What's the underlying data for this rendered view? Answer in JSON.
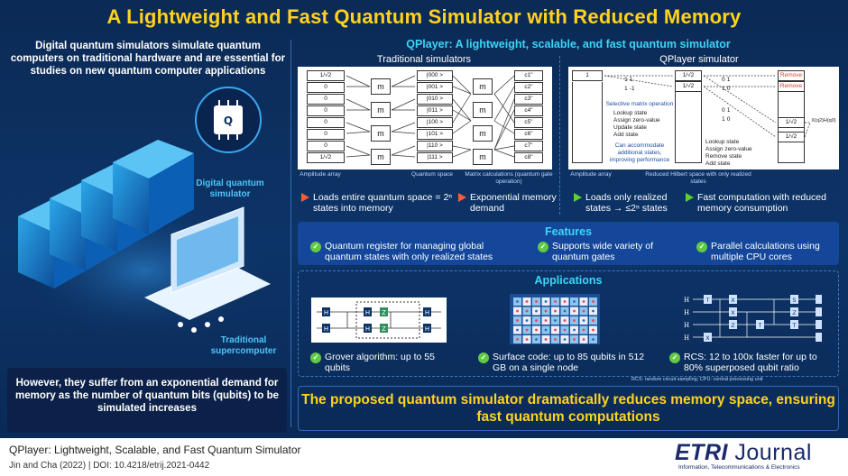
{
  "title": "A Lightweight and Fast Quantum Simulator with Reduced Memory",
  "left": {
    "intro": "Digital quantum simulators simulate quantum computers on traditional hardware and are essential for studies on new quantum computer applications",
    "digital_label": "Digital quantum simulator",
    "super_label": "Traditional supercomputer",
    "problem": "However, they suffer from an exponential demand for memory as the number of quantum bits (qubits) to be simulated increases"
  },
  "qplayer": {
    "heading": "QPlayer: A lightweight, scalable, and fast quantum simulator",
    "traditional": {
      "heading": "Traditional simulators",
      "amplitudes": [
        "1/√2",
        "0",
        "0",
        "0",
        "0",
        "0",
        "0",
        "1/√2"
      ],
      "states": [
        "|000 >",
        "|001 >",
        "|010 >",
        "|011 >",
        "|100 >",
        "|101 >",
        "|110 >",
        "|111 >"
      ],
      "coeffs": [
        "c1''",
        "c2''",
        "c3''",
        "c4''",
        "c5''",
        "c6''",
        "c7''",
        "c8''"
      ],
      "matrix_symbol": "m",
      "cap_amplitude": "Amplitude array",
      "cap_space": "Quantum space",
      "cap_matrix": "Matrix calculations (quantum gate operation)",
      "point1": "Loads entire quantum space = 2ⁿ states into memory",
      "point2": "Exponential memory demand"
    },
    "qp": {
      "heading": "QPlayer simulator",
      "first_cell": "1",
      "mid_cells": [
        "1/√2",
        "1/√2"
      ],
      "remove_cells": [
        "Remove",
        "Remove"
      ],
      "final_cells": [
        "1/√2",
        "1/√2"
      ],
      "ops1": [
        "Selective matrix operation",
        "Lookup state",
        "Assign zero-value",
        "Update state",
        "Add state"
      ],
      "ops2": [
        "Lookup state",
        "Assign zero-value",
        "Remove state",
        "Add state"
      ],
      "accommodate": "Can accommodate additional states, improving performance",
      "x_label": "X(q2)H(q0)",
      "cap_amplitude": "Amplitude array",
      "cap_reduced": "Reduced Hilbert space with only realized states",
      "point1": "Loads only realized states → ≤2ⁿ states",
      "point2": "Fast computation with reduced memory consumption"
    }
  },
  "features": {
    "title": "Features",
    "items": [
      "Quantum register for managing global quantum states with only realized states",
      "Supports wide variety of quantum gates",
      "Parallel calculations using multiple CPU cores"
    ]
  },
  "applications": {
    "title": "Applications",
    "items": [
      "Grover algorithm: up to 55 qubits",
      "Surface code: up to 85 qubits in 512 GB on a single node",
      "RCS: 12 to 100x faster for up to 80% superposed qubit ratio"
    ],
    "footnote": "RCS: random circuit sampling; CPU: central processing unit",
    "grover_gates": [
      "H",
      "H",
      "H",
      "Z",
      "H",
      "H",
      "Z",
      "H"
    ],
    "rcs_gates": [
      "T",
      "X",
      "S",
      "X",
      "Z",
      "T",
      "X",
      "Z",
      "T"
    ],
    "qubit_label": "H"
  },
  "conclusion": "The proposed quantum simulator dramatically reduces memory space, ensuring fast quantum computations",
  "footer": {
    "paper_title": "QPlayer: Lightweight, Scalable, and Fast Quantum Simulator",
    "citation": "Jin and Cha (2022) | DOI: 10.4218/etrij.2021-0442",
    "logo_main": "ETRI",
    "logo_journal": "Journal",
    "logo_sub": "Information, Telecommunications & Electronics"
  },
  "colors": {
    "accent_yellow": "#ffd21f",
    "accent_cyan": "#3cd5f7",
    "check_green": "#62c943",
    "arrow_red": "#ff5a36"
  }
}
